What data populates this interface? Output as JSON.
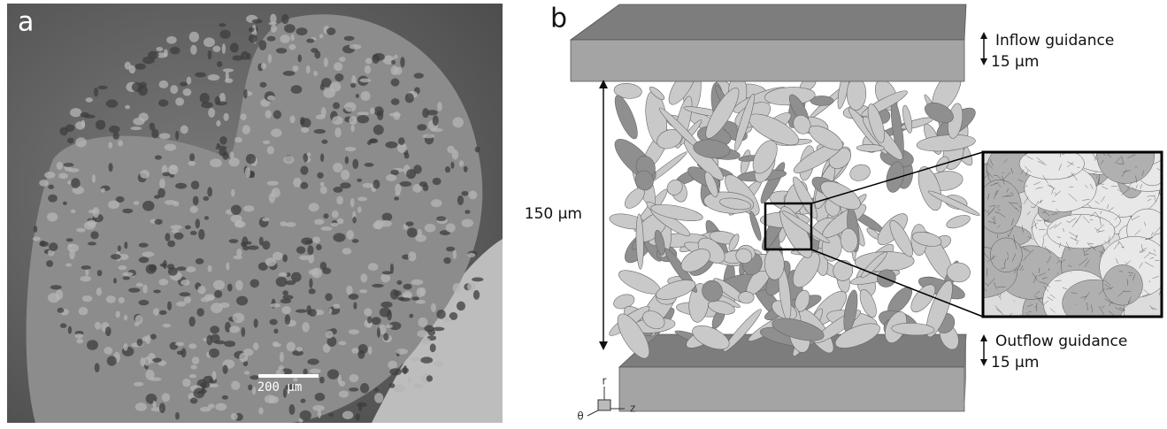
{
  "panel_a": {
    "label": "a",
    "scale_bar": "200 µm"
  },
  "panel_b": {
    "label": "b",
    "inflow": {
      "label": "Inflow guidance",
      "thickness": "15 µm"
    },
    "height": "150 µm",
    "outflow": {
      "label": "Outflow guidance",
      "thickness": "15 µm"
    },
    "axes": {
      "r": "r",
      "theta": "θ",
      "z": "z"
    }
  }
}
